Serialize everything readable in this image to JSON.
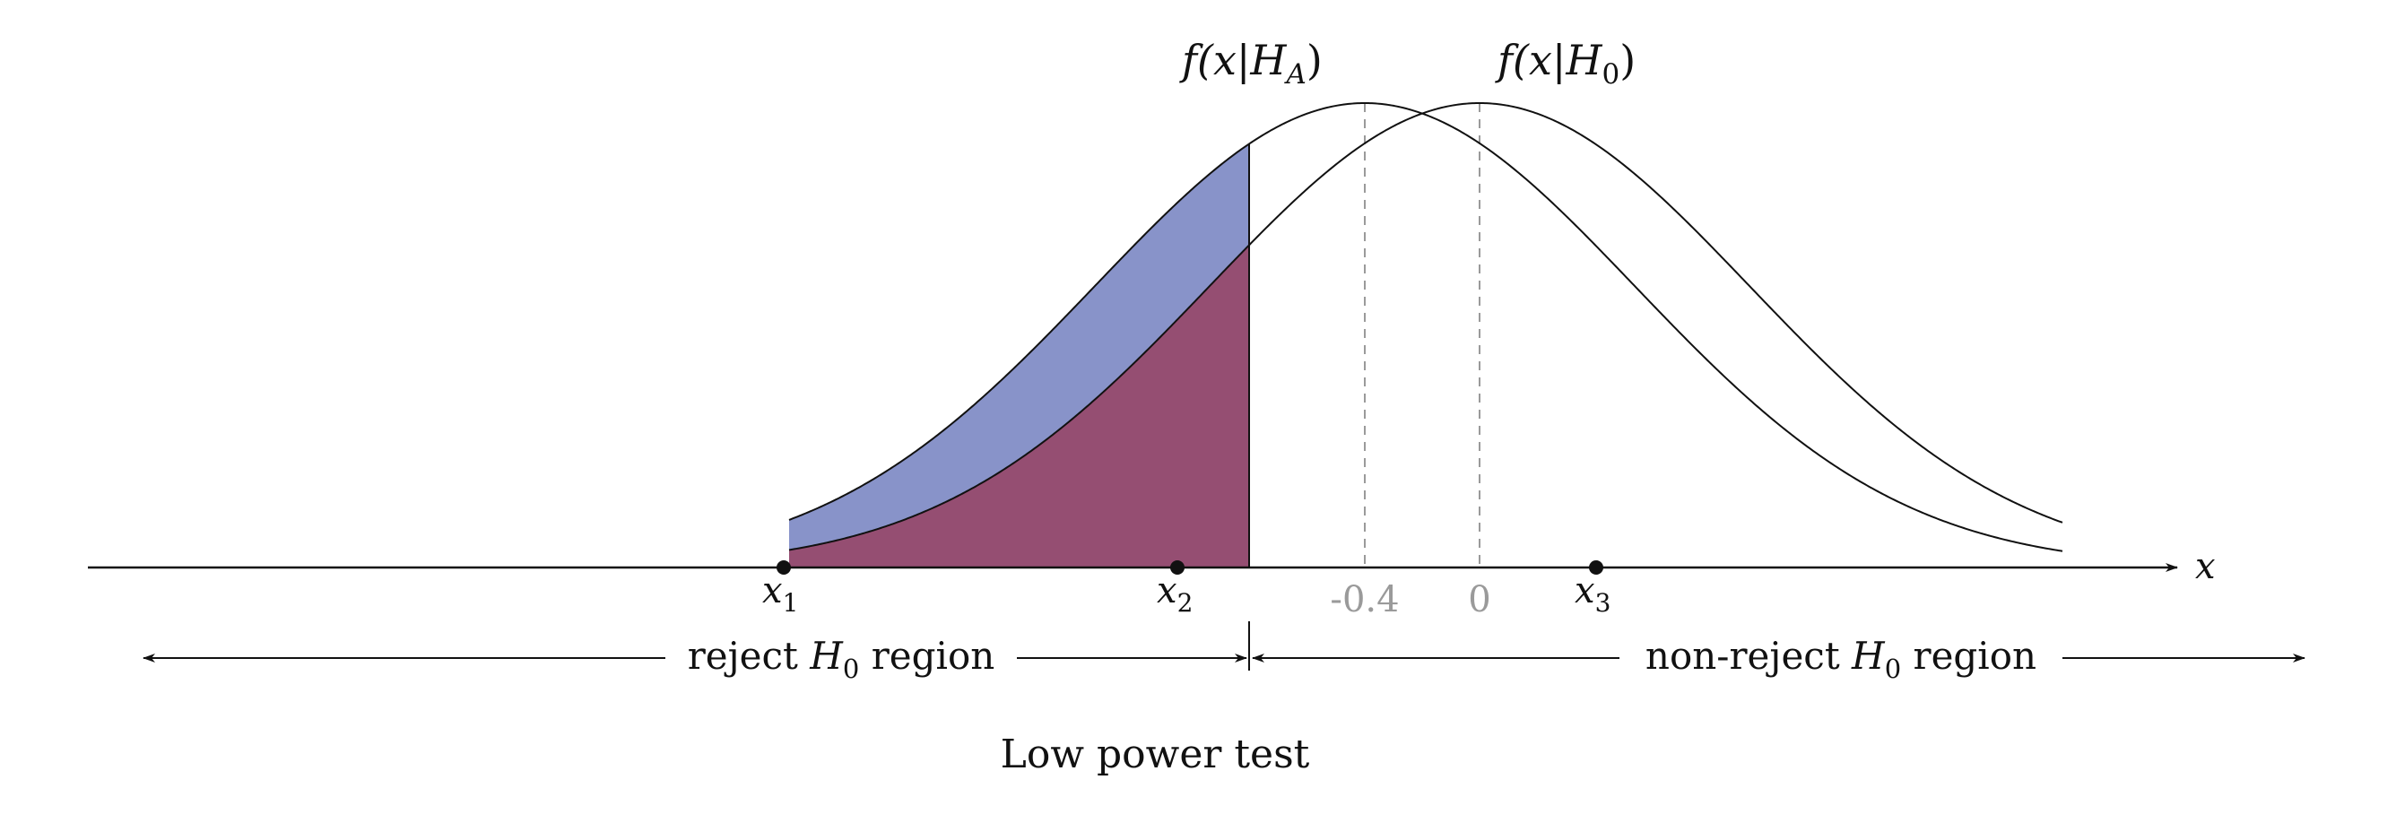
{
  "figure": {
    "caption": "Low power test",
    "x_axis": {
      "label": "x"
    },
    "curves": [
      {
        "id": "alternative",
        "label_prefix": "f(x|H",
        "label_sub": "A",
        "label_suffix": ")",
        "mean": -0.4
      },
      {
        "id": "null",
        "label_prefix": "f(x|H",
        "label_sub": "0",
        "label_suffix": ")",
        "mean": 0
      }
    ],
    "mean_tick_labels": [
      "-0.4",
      "0"
    ],
    "points": [
      {
        "label": "x",
        "sub": "1"
      },
      {
        "label": "x",
        "sub": "2"
      },
      {
        "label": "x",
        "sub": "3"
      }
    ],
    "regions": {
      "reject": {
        "prefix": "reject ",
        "symbol": "H",
        "sub": "0",
        "suffix": " region"
      },
      "non_reject": {
        "prefix": "non-reject ",
        "symbol": "H",
        "sub": "0",
        "suffix": " region"
      }
    },
    "colors": {
      "power_area": "#8893c9",
      "alpha_area": "#954e72",
      "curve": "#111111",
      "mean_line": "#9a9a9a"
    }
  }
}
